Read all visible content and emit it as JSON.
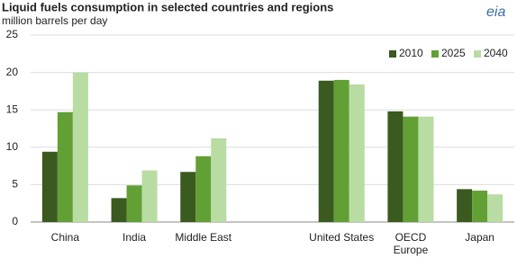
{
  "chart_data": {
    "type": "bar",
    "title": "Liquid fuels consumption in selected countries and regions",
    "subtitle": "million barrels per day",
    "logo": "eia",
    "categories": [
      "China",
      "India",
      "Middle East",
      null,
      "United States",
      "OECD Europe",
      "Japan"
    ],
    "series": [
      {
        "name": "2010",
        "color": "#3b5a1f",
        "values": [
          9.4,
          3.2,
          6.7,
          null,
          18.9,
          14.8,
          4.4
        ]
      },
      {
        "name": "2025",
        "color": "#62a036",
        "values": [
          14.7,
          4.9,
          8.8,
          null,
          19.0,
          14.1,
          4.2
        ]
      },
      {
        "name": "2040",
        "color": "#b8dca2",
        "values": [
          20.0,
          6.9,
          11.2,
          null,
          18.4,
          14.1,
          3.7
        ]
      }
    ],
    "ylim": [
      0,
      25
    ],
    "yticks": [
      0,
      5,
      10,
      15,
      20,
      25
    ],
    "grid": true,
    "legend": "top-right"
  }
}
